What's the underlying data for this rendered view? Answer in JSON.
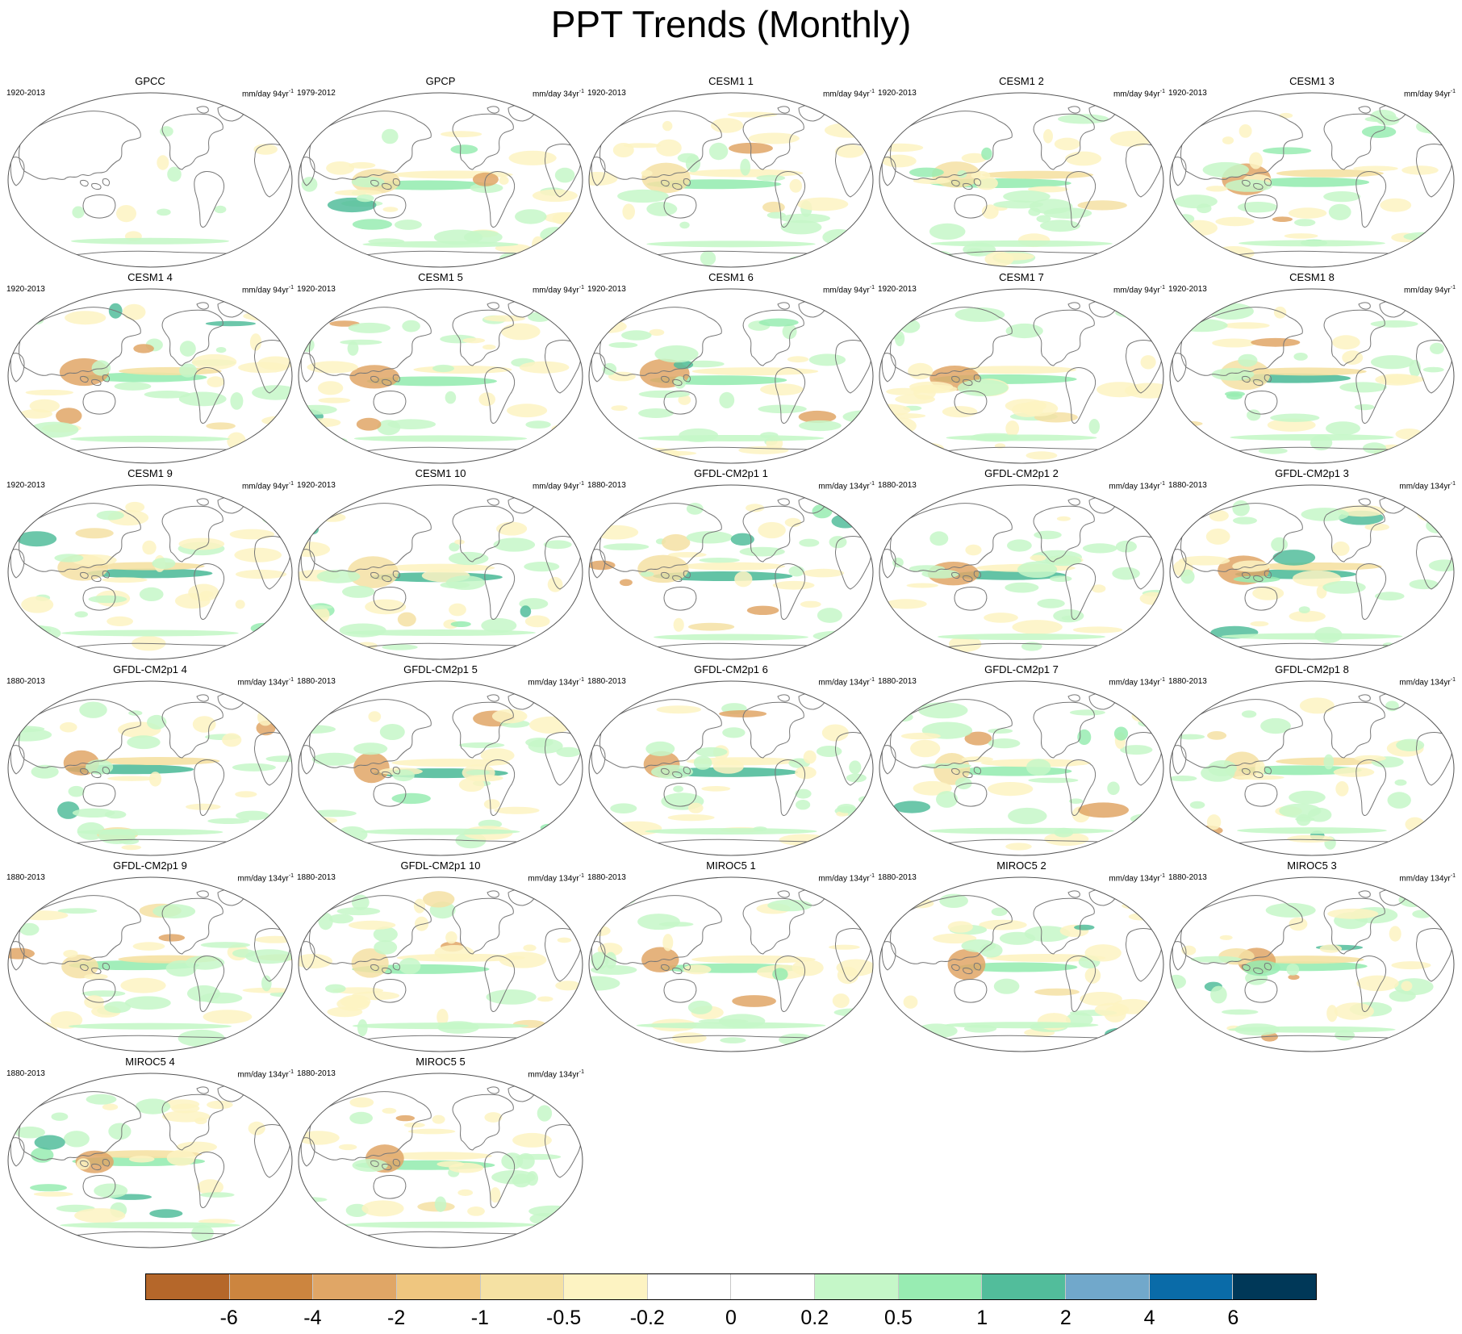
{
  "title": "PPT Trends (Monthly)",
  "panels": [
    {
      "title": "GPCC",
      "period": "1920-2013",
      "units": "mm/day 94yr",
      "units_exp": "-1"
    },
    {
      "title": "GPCP",
      "period": "1979-2012",
      "units": "mm/day 34yr",
      "units_exp": "-1"
    },
    {
      "title": "CESM1 1",
      "period": "1920-2013",
      "units": "mm/day 94yr",
      "units_exp": "-1"
    },
    {
      "title": "CESM1 2",
      "period": "1920-2013",
      "units": "mm/day 94yr",
      "units_exp": "-1"
    },
    {
      "title": "CESM1 3",
      "period": "1920-2013",
      "units": "mm/day 94yr",
      "units_exp": "-1"
    },
    {
      "title": "CESM1 4",
      "period": "1920-2013",
      "units": "mm/day 94yr",
      "units_exp": "-1"
    },
    {
      "title": "CESM1 5",
      "period": "1920-2013",
      "units": "mm/day 94yr",
      "units_exp": "-1"
    },
    {
      "title": "CESM1 6",
      "period": "1920-2013",
      "units": "mm/day 94yr",
      "units_exp": "-1"
    },
    {
      "title": "CESM1 7",
      "period": "1920-2013",
      "units": "mm/day 94yr",
      "units_exp": "-1"
    },
    {
      "title": "CESM1 8",
      "period": "1920-2013",
      "units": "mm/day 94yr",
      "units_exp": "-1"
    },
    {
      "title": "CESM1 9",
      "period": "1920-2013",
      "units": "mm/day 94yr",
      "units_exp": "-1"
    },
    {
      "title": "CESM1 10",
      "period": "1920-2013",
      "units": "mm/day 94yr",
      "units_exp": "-1"
    },
    {
      "title": "GFDL-CM2p1 1",
      "period": "1880-2013",
      "units": "mm/day 134yr",
      "units_exp": "-1"
    },
    {
      "title": "GFDL-CM2p1 2",
      "period": "1880-2013",
      "units": "mm/day 134yr",
      "units_exp": "-1"
    },
    {
      "title": "GFDL-CM2p1 3",
      "period": "1880-2013",
      "units": "mm/day 134yr",
      "units_exp": "-1"
    },
    {
      "title": "GFDL-CM2p1 4",
      "period": "1880-2013",
      "units": "mm/day 134yr",
      "units_exp": "-1"
    },
    {
      "title": "GFDL-CM2p1 5",
      "period": "1880-2013",
      "units": "mm/day 134yr",
      "units_exp": "-1"
    },
    {
      "title": "GFDL-CM2p1 6",
      "period": "1880-2013",
      "units": "mm/day 134yr",
      "units_exp": "-1"
    },
    {
      "title": "GFDL-CM2p1 7",
      "period": "1880-2013",
      "units": "mm/day 134yr",
      "units_exp": "-1"
    },
    {
      "title": "GFDL-CM2p1 8",
      "period": "1880-2013",
      "units": "mm/day 134yr",
      "units_exp": "-1"
    },
    {
      "title": "GFDL-CM2p1 9",
      "period": "1880-2013",
      "units": "mm/day 134yr",
      "units_exp": "-1"
    },
    {
      "title": "GFDL-CM2p1 10",
      "period": "1880-2013",
      "units": "mm/day 134yr",
      "units_exp": "-1"
    },
    {
      "title": "MIROC5 1",
      "period": "1880-2013",
      "units": "mm/day 134yr",
      "units_exp": "-1"
    },
    {
      "title": "MIROC5 2",
      "period": "1880-2013",
      "units": "mm/day 134yr",
      "units_exp": "-1"
    },
    {
      "title": "MIROC5 3",
      "period": "1880-2013",
      "units": "mm/day 134yr",
      "units_exp": "-1"
    },
    {
      "title": "MIROC5 4",
      "period": "1880-2013",
      "units": "mm/day 134yr",
      "units_exp": "-1"
    },
    {
      "title": "MIROC5 5",
      "period": "1880-2013",
      "units": "mm/day 134yr",
      "units_exp": "-1"
    }
  ],
  "colorbar": {
    "colors": [
      "#b5672a",
      "#cc853f",
      "#e0a666",
      "#efc67f",
      "#f5e1a3",
      "#fdf3c2",
      "#ffffff",
      "#ffffff",
      "#c5f7c8",
      "#98ecb2",
      "#52bd9b",
      "#71a8cb",
      "#0a6ba8",
      "#003858"
    ],
    "labels": [
      "-6",
      "-4",
      "-2",
      "-1",
      "-0.5",
      "-0.2",
      "0",
      "0.2",
      "0.5",
      "1",
      "2",
      "4",
      "6"
    ]
  },
  "map_colors": {
    "land_outline": "#777777",
    "frame": "#555555",
    "wet_light": "#c5f7c8",
    "wet_mid": "#98ecb2",
    "wet_strong": "#52bd9b",
    "dry_light": "#fdf3c2",
    "dry_mid": "#f5e1a3",
    "dry_strong": "#e0a666"
  }
}
